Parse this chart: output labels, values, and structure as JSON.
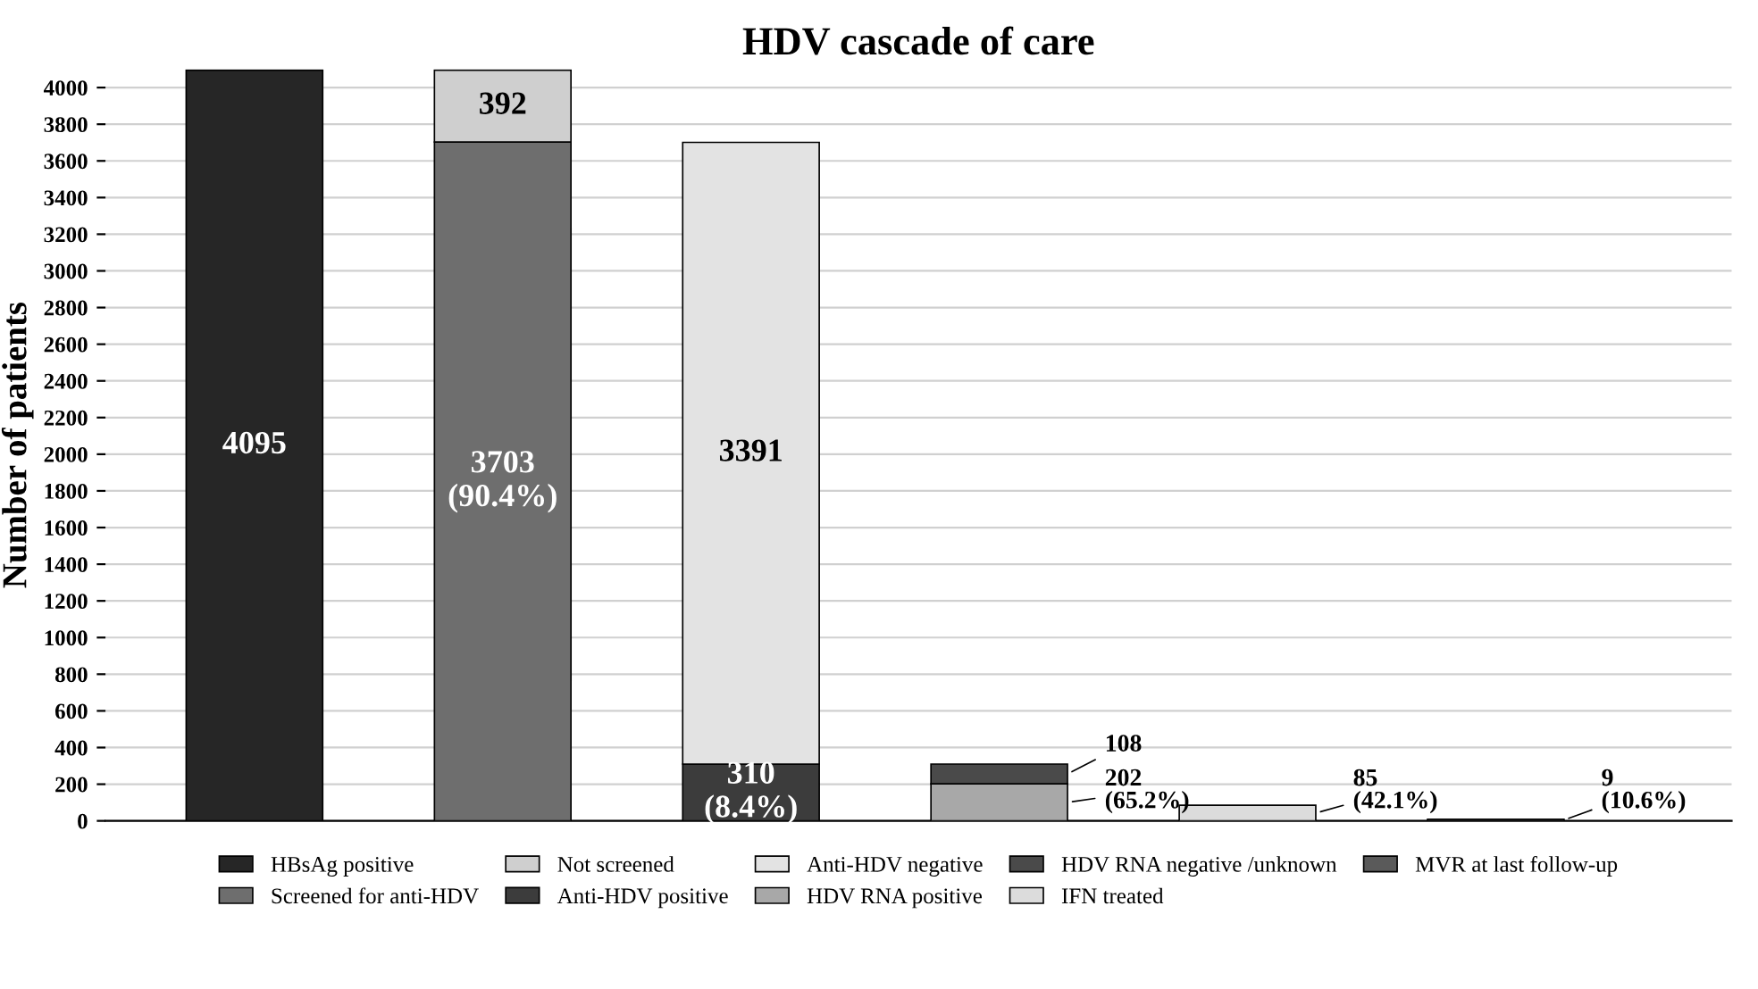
{
  "chart_data": {
    "type": "bar",
    "title": "HDV cascade of care",
    "ylabel": "Number of patients",
    "categories": [
      null,
      null,
      null,
      null,
      null,
      null
    ],
    "stacked": true,
    "ylim": [
      0,
      4100
    ],
    "yticks": [
      0,
      200,
      400,
      600,
      800,
      1000,
      1200,
      1400,
      1600,
      1800,
      2000,
      2200,
      2400,
      2600,
      2800,
      3000,
      3200,
      3400,
      3600,
      3800,
      4000
    ],
    "grid": "y",
    "legend": "bottom",
    "series": [
      {
        "name": "HBsAg positive",
        "color": "#262626",
        "values": [
          4095,
          null,
          null,
          null,
          null,
          null
        ],
        "value_labels": [
          "4095",
          null,
          null,
          null,
          null,
          null
        ]
      },
      {
        "name": "Screened for anti-HDV",
        "color": "#6e6e6e",
        "values": [
          null,
          3703,
          null,
          null,
          null,
          null
        ],
        "value_labels": [
          null,
          "3703\n(90.4%)",
          null,
          null,
          null,
          null
        ]
      },
      {
        "name": "Not screened",
        "color": "#cfcfcf",
        "values": [
          null,
          392,
          null,
          null,
          null,
          null
        ],
        "value_labels": [
          null,
          "392",
          null,
          null,
          null,
          null
        ]
      },
      {
        "name": "Anti-HDV positive",
        "color": "#3c3c3c",
        "values": [
          null,
          null,
          310,
          null,
          null,
          null
        ],
        "value_labels": [
          null,
          null,
          "310\n(8.4%)",
          null,
          null,
          null
        ]
      },
      {
        "name": "Anti-HDV negative",
        "color": "#e3e3e3",
        "values": [
          null,
          null,
          3391,
          null,
          null,
          null
        ],
        "value_labels": [
          null,
          null,
          "3391",
          null,
          null,
          null
        ]
      },
      {
        "name": "HDV RNA positive",
        "color": "#a8a8a8",
        "values": [
          null,
          null,
          null,
          202,
          null,
          null
        ],
        "value_labels": [
          null,
          null,
          null,
          "202\n(65.2%)",
          null,
          null
        ]
      },
      {
        "name": "HDV RNA negative /unknown",
        "color": "#4a4a4a",
        "values": [
          null,
          null,
          null,
          108,
          null,
          null
        ],
        "value_labels": [
          null,
          null,
          null,
          "108",
          null,
          null
        ]
      },
      {
        "name": "IFN treated",
        "color": "#dcdcdc",
        "values": [
          null,
          null,
          null,
          null,
          85,
          null
        ],
        "value_labels": [
          null,
          null,
          null,
          null,
          "85\n(42.1%)",
          null
        ]
      },
      {
        "name": "MVR at last follow-up",
        "color": "#5a5a5a",
        "values": [
          null,
          null,
          null,
          null,
          null,
          9
        ],
        "value_labels": [
          null,
          null,
          null,
          null,
          null,
          "9\n(10.6%)"
        ]
      }
    ]
  }
}
